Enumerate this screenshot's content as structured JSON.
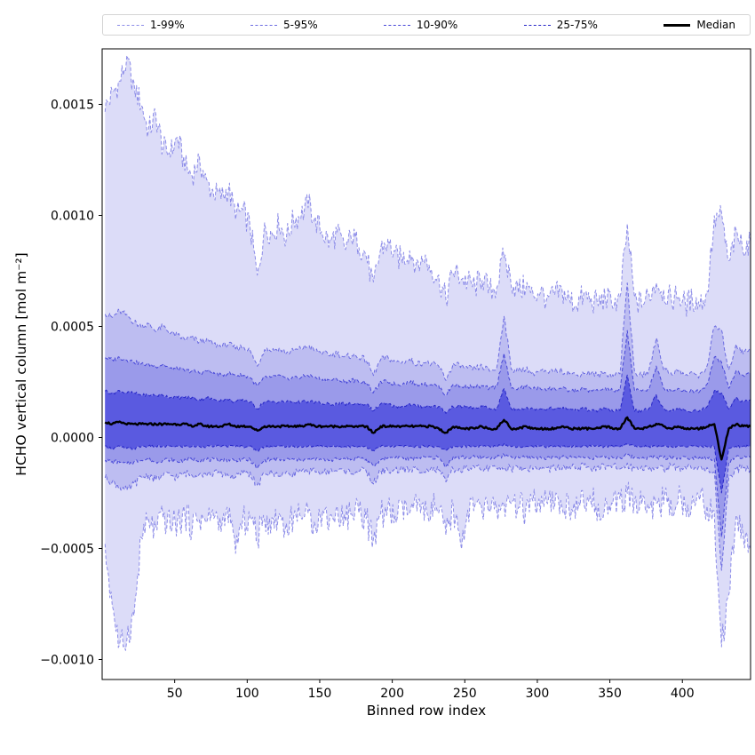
{
  "legend": {
    "entries": [
      {
        "label": "1-99%",
        "color": "#8c8ce8",
        "style": "dashed"
      },
      {
        "label": "5-95%",
        "color": "#6b6be1",
        "style": "dashed"
      },
      {
        "label": "10-90%",
        "color": "#4747d8",
        "style": "dashed"
      },
      {
        "label": "25-75%",
        "color": "#2626c8",
        "style": "dashed"
      },
      {
        "label": "Median",
        "color": "#000000",
        "style": "solid"
      }
    ]
  },
  "chart_data": {
    "type": "area",
    "title": "",
    "xlabel": "Binned row index",
    "ylabel": "HCHO vertical column [mol m⁻²]",
    "grid": false,
    "legend_position": "top",
    "xlim": [
      0,
      447
    ],
    "ylim": [
      -0.00109,
      0.00175
    ],
    "xticks": [
      {
        "v": 50,
        "label": "50"
      },
      {
        "v": 100,
        "label": "100"
      },
      {
        "v": 150,
        "label": "150"
      },
      {
        "v": 200,
        "label": "200"
      },
      {
        "v": 250,
        "label": "250"
      },
      {
        "v": 300,
        "label": "300"
      },
      {
        "v": 350,
        "label": "350"
      },
      {
        "v": 400,
        "label": "400"
      }
    ],
    "yticks": [
      {
        "v": -0.001,
        "label": "−0.0010"
      },
      {
        "v": -0.0005,
        "label": "−0.0005"
      },
      {
        "v": 0.0,
        "label": "0.0000"
      },
      {
        "v": 0.0005,
        "label": "0.0005"
      },
      {
        "v": 0.001,
        "label": "0.0010"
      },
      {
        "v": 0.0015,
        "label": "0.0015"
      }
    ],
    "x": [
      2,
      7,
      12,
      17,
      22,
      27,
      32,
      37,
      42,
      47,
      52,
      57,
      62,
      67,
      72,
      77,
      82,
      87,
      92,
      97,
      102,
      107,
      112,
      117,
      122,
      127,
      132,
      137,
      142,
      147,
      152,
      157,
      162,
      167,
      172,
      177,
      182,
      187,
      192,
      197,
      202,
      207,
      212,
      217,
      222,
      227,
      232,
      237,
      242,
      247,
      252,
      257,
      262,
      267,
      272,
      277,
      282,
      287,
      292,
      297,
      302,
      307,
      312,
      317,
      322,
      327,
      332,
      337,
      342,
      347,
      352,
      357,
      362,
      367,
      372,
      377,
      382,
      387,
      392,
      397,
      402,
      407,
      412,
      417,
      422,
      427,
      432,
      437,
      442,
      447
    ],
    "series": [
      {
        "name": "p99",
        "percentile": 99,
        "noise": 6e-05,
        "values": [
          0.00148,
          0.00155,
          0.0016,
          0.0017,
          0.00158,
          0.0015,
          0.00138,
          0.00145,
          0.0013,
          0.00128,
          0.00135,
          0.00122,
          0.00118,
          0.00125,
          0.00115,
          0.0011,
          0.00108,
          0.00112,
          0.001,
          0.00102,
          0.00095,
          0.00072,
          0.00095,
          0.00092,
          0.00096,
          0.0009,
          0.00098,
          0.001,
          0.00105,
          0.00098,
          0.00092,
          0.00088,
          0.00092,
          0.00085,
          0.0009,
          0.00087,
          0.00082,
          0.00068,
          0.00085,
          0.00088,
          0.00082,
          0.0008,
          0.00084,
          0.00078,
          0.0008,
          0.00076,
          0.00072,
          0.00062,
          0.00075,
          0.00072,
          0.0007,
          0.00068,
          0.00072,
          0.00066,
          0.00068,
          0.00082,
          0.0007,
          0.00066,
          0.00068,
          0.00064,
          0.00066,
          0.00062,
          0.00064,
          0.00066,
          0.00062,
          0.0006,
          0.00064,
          0.00062,
          0.0006,
          0.00063,
          0.0006,
          0.00062,
          0.00095,
          0.00062,
          0.0006,
          0.00064,
          0.0007,
          0.00066,
          0.00062,
          0.00064,
          0.0006,
          0.00062,
          0.0006,
          0.00065,
          0.00098,
          0.001,
          0.00078,
          0.00092,
          0.00085,
          0.00088
        ]
      },
      {
        "name": "p95",
        "percentile": 95,
        "noise": 1.5e-05,
        "values": [
          0.00056,
          0.00054,
          0.00057,
          0.00055,
          0.00052,
          0.0005,
          0.00051,
          0.00048,
          0.0005,
          0.00047,
          0.00046,
          0.00044,
          0.00045,
          0.00043,
          0.00044,
          0.00042,
          0.00041,
          0.00042,
          0.0004,
          0.00041,
          0.00039,
          0.00032,
          0.0004,
          0.00039,
          0.0004,
          0.00038,
          0.00039,
          0.0004,
          0.00041,
          0.00039,
          0.00038,
          0.00037,
          0.00038,
          0.00036,
          0.00037,
          0.00036,
          0.00035,
          0.00028,
          0.00035,
          0.00036,
          0.00034,
          0.00034,
          0.00035,
          0.00033,
          0.00034,
          0.00033,
          0.00032,
          0.00026,
          0.00033,
          0.00032,
          0.00031,
          0.00031,
          0.00032,
          0.0003,
          0.00031,
          0.00055,
          0.00031,
          0.0003,
          0.00031,
          0.00029,
          0.0003,
          0.00029,
          0.0003,
          0.0003,
          0.00029,
          0.00028,
          0.00029,
          0.00029,
          0.00028,
          0.00029,
          0.00028,
          0.00029,
          0.0007,
          0.00029,
          0.00028,
          0.0003,
          0.00045,
          0.00031,
          0.00029,
          0.0003,
          0.00028,
          0.00029,
          0.00028,
          0.00032,
          0.0005,
          0.00048,
          0.0003,
          0.00042,
          0.00038,
          0.0004
        ]
      },
      {
        "name": "p90",
        "percentile": 90,
        "noise": 1e-05,
        "values": [
          0.00036,
          0.00035,
          0.00036,
          0.00035,
          0.00034,
          0.00033,
          0.00033,
          0.00032,
          0.00033,
          0.00031,
          0.00031,
          0.0003,
          0.0003,
          0.00029,
          0.0003,
          0.00029,
          0.00028,
          0.00029,
          0.00028,
          0.00028,
          0.00027,
          0.00023,
          0.00027,
          0.00027,
          0.00028,
          0.00026,
          0.00027,
          0.00027,
          0.00028,
          0.00027,
          0.00026,
          0.00026,
          0.00026,
          0.00025,
          0.00026,
          0.00025,
          0.00025,
          0.0002,
          0.00025,
          0.00025,
          0.00024,
          0.00024,
          0.00025,
          0.00024,
          0.00024,
          0.00024,
          0.00023,
          0.00019,
          0.00024,
          0.00023,
          0.00023,
          0.00023,
          0.00023,
          0.00022,
          0.00023,
          0.00038,
          0.00022,
          0.00022,
          0.00023,
          0.00022,
          0.00022,
          0.00022,
          0.00022,
          0.00022,
          0.00021,
          0.00021,
          0.00022,
          0.00021,
          0.00021,
          0.00022,
          0.00021,
          0.00021,
          0.00048,
          0.00021,
          0.00021,
          0.00022,
          0.00032,
          0.00022,
          0.00021,
          0.00022,
          0.00021,
          0.00021,
          0.00021,
          0.00024,
          0.00036,
          0.00034,
          0.00022,
          0.0003,
          0.00028,
          0.00029
        ]
      },
      {
        "name": "p75",
        "percentile": 75,
        "noise": 8e-06,
        "values": [
          0.00021,
          0.0002,
          0.00021,
          0.0002,
          0.0002,
          0.00019,
          0.00019,
          0.00019,
          0.00019,
          0.00018,
          0.00018,
          0.00018,
          0.00018,
          0.00017,
          0.00018,
          0.00017,
          0.00017,
          0.00017,
          0.00016,
          0.00017,
          0.00016,
          0.00013,
          0.00016,
          0.00016,
          0.00016,
          0.00016,
          0.00016,
          0.00016,
          0.00016,
          0.00016,
          0.00015,
          0.00015,
          0.00015,
          0.00015,
          0.00015,
          0.00015,
          0.00015,
          0.00012,
          0.00015,
          0.00015,
          0.00014,
          0.00014,
          0.00015,
          0.00014,
          0.00014,
          0.00014,
          0.00014,
          0.00011,
          0.00014,
          0.00014,
          0.00014,
          0.00013,
          0.00014,
          0.00013,
          0.00013,
          0.00022,
          0.00013,
          0.00013,
          0.00013,
          0.00013,
          0.00013,
          0.00013,
          0.00013,
          0.00013,
          0.00013,
          0.00012,
          0.00013,
          0.00012,
          0.00012,
          0.00013,
          0.00012,
          0.00012,
          0.00028,
          0.00012,
          0.00012,
          0.00013,
          0.00019,
          0.00013,
          0.00012,
          0.00013,
          0.00012,
          0.00012,
          0.00012,
          0.00014,
          0.00021,
          0.0002,
          0.00013,
          0.00018,
          0.00016,
          0.00017
        ]
      },
      {
        "name": "median",
        "percentile": 50,
        "noise": 5e-06,
        "values": [
          7e-05,
          6e-05,
          7e-05,
          6e-05,
          6e-05,
          6e-05,
          6e-05,
          6e-05,
          6e-05,
          6e-05,
          6e-05,
          6e-05,
          5e-05,
          6e-05,
          5e-05,
          5e-05,
          5e-05,
          6e-05,
          5e-05,
          5e-05,
          5e-05,
          3e-05,
          5e-05,
          5e-05,
          5e-05,
          5e-05,
          5e-05,
          5e-05,
          6e-05,
          5e-05,
          5e-05,
          5e-05,
          5e-05,
          5e-05,
          5e-05,
          5e-05,
          5e-05,
          2e-05,
          5e-05,
          5e-05,
          5e-05,
          5e-05,
          5e-05,
          5e-05,
          5e-05,
          5e-05,
          4e-05,
          2e-05,
          5e-05,
          4e-05,
          4e-05,
          4e-05,
          5e-05,
          4e-05,
          4e-05,
          8e-05,
          4e-05,
          4e-05,
          5e-05,
          4e-05,
          4e-05,
          4e-05,
          4e-05,
          5e-05,
          4e-05,
          4e-05,
          4e-05,
          4e-05,
          4e-05,
          5e-05,
          4e-05,
          4e-05,
          9e-05,
          4e-05,
          4e-05,
          5e-05,
          6e-05,
          5e-05,
          4e-05,
          5e-05,
          4e-05,
          4e-05,
          4e-05,
          5e-05,
          6e-05,
          -0.0001,
          4e-05,
          6e-05,
          5e-05,
          5e-05
        ]
      },
      {
        "name": "p25",
        "percentile": 25,
        "noise": 6e-06,
        "values": [
          -4e-05,
          -5e-05,
          -4e-05,
          -5e-05,
          -5e-05,
          -4e-05,
          -4e-05,
          -4e-05,
          -4e-05,
          -4e-05,
          -4e-05,
          -4e-05,
          -4e-05,
          -4e-05,
          -4e-05,
          -4e-05,
          -4e-05,
          -4e-05,
          -4e-05,
          -4e-05,
          -4e-05,
          -6e-05,
          -4e-05,
          -4e-05,
          -4e-05,
          -4e-05,
          -4e-05,
          -4e-05,
          -4e-05,
          -4e-05,
          -4e-05,
          -4e-05,
          -4e-05,
          -4e-05,
          -4e-05,
          -4e-05,
          -4e-05,
          -6e-05,
          -4e-05,
          -4e-05,
          -4e-05,
          -4e-05,
          -4e-05,
          -4e-05,
          -4e-05,
          -4e-05,
          -4e-05,
          -6e-05,
          -4e-05,
          -4e-05,
          -4e-05,
          -4e-05,
          -4e-05,
          -4e-05,
          -4e-05,
          -3e-05,
          -4e-05,
          -4e-05,
          -4e-05,
          -4e-05,
          -4e-05,
          -4e-05,
          -4e-05,
          -4e-05,
          -4e-05,
          -4e-05,
          -4e-05,
          -4e-05,
          -4e-05,
          -4e-05,
          -4e-05,
          -4e-05,
          -3e-05,
          -4e-05,
          -4e-05,
          -4e-05,
          -4e-05,
          -4e-05,
          -4e-05,
          -4e-05,
          -4e-05,
          -4e-05,
          -4e-05,
          -4e-05,
          -4e-05,
          -0.00025,
          -5e-05,
          -4e-05,
          -4e-05,
          -4e-05
        ]
      },
      {
        "name": "p10",
        "percentile": 10,
        "noise": 1e-05,
        "values": [
          -0.0001,
          -0.00011,
          -0.00011,
          -0.00012,
          -0.00011,
          -0.0001,
          -0.0001,
          -0.00011,
          -0.0001,
          -0.0001,
          -0.00011,
          -0.0001,
          -0.0001,
          -0.0001,
          -0.0001,
          -0.0001,
          -0.0001,
          -0.0001,
          -0.0001,
          -0.0001,
          -0.0001,
          -0.00014,
          -0.0001,
          -0.0001,
          -0.0001,
          -0.0001,
          -0.0001,
          -0.0001,
          -0.0001,
          -0.0001,
          -0.0001,
          -0.0001,
          -0.0001,
          -9e-05,
          -0.0001,
          -9e-05,
          -0.0001,
          -0.00013,
          -0.0001,
          -9e-05,
          -9e-05,
          -9e-05,
          -0.0001,
          -9e-05,
          -9e-05,
          -9e-05,
          -9e-05,
          -0.00013,
          -9e-05,
          -9e-05,
          -9e-05,
          -9e-05,
          -9e-05,
          -9e-05,
          -9e-05,
          -8e-05,
          -9e-05,
          -9e-05,
          -9e-05,
          -9e-05,
          -9e-05,
          -9e-05,
          -9e-05,
          -9e-05,
          -9e-05,
          -9e-05,
          -9e-05,
          -9e-05,
          -9e-05,
          -9e-05,
          -9e-05,
          -9e-05,
          -8e-05,
          -9e-05,
          -9e-05,
          -9e-05,
          -9e-05,
          -9e-05,
          -9e-05,
          -9e-05,
          -9e-05,
          -9e-05,
          -9e-05,
          -9e-05,
          -0.0001,
          -0.00045,
          -0.00011,
          -9e-05,
          -9e-05,
          -9e-05
        ]
      },
      {
        "name": "p05",
        "percentile": 5,
        "noise": 1.8e-05,
        "values": [
          -0.00018,
          -0.0002,
          -0.00022,
          -0.00024,
          -0.00021,
          -0.00018,
          -0.00017,
          -0.00019,
          -0.00017,
          -0.00017,
          -0.00018,
          -0.00016,
          -0.00017,
          -0.00016,
          -0.00017,
          -0.00016,
          -0.00016,
          -0.00017,
          -0.00018,
          -0.00016,
          -0.00016,
          -0.00022,
          -0.00016,
          -0.00016,
          -0.00017,
          -0.00016,
          -0.00016,
          -0.00015,
          -0.00016,
          -0.00015,
          -0.00016,
          -0.00015,
          -0.00015,
          -0.00015,
          -0.00016,
          -0.00015,
          -0.00015,
          -0.00021,
          -0.00015,
          -0.00015,
          -0.00015,
          -0.00014,
          -0.00015,
          -0.00014,
          -0.00015,
          -0.00014,
          -0.00015,
          -0.0002,
          -0.00014,
          -0.00015,
          -0.00014,
          -0.00014,
          -0.00014,
          -0.00014,
          -0.00014,
          -0.00013,
          -0.00014,
          -0.00014,
          -0.00014,
          -0.00014,
          -0.00014,
          -0.00014,
          -0.00014,
          -0.00014,
          -0.00013,
          -0.00014,
          -0.00013,
          -0.00014,
          -0.00013,
          -0.00014,
          -0.00013,
          -0.00014,
          -0.00012,
          -0.00014,
          -0.00013,
          -0.00014,
          -0.00014,
          -0.00014,
          -0.00013,
          -0.00014,
          -0.00013,
          -0.00014,
          -0.00013,
          -0.00014,
          -0.00016,
          -0.0006,
          -0.00018,
          -0.00014,
          -0.00014,
          -0.00014
        ]
      },
      {
        "name": "p01",
        "percentile": 1,
        "noise": 7e-05,
        "values": [
          -0.0005,
          -0.00075,
          -0.00095,
          -0.0009,
          -0.0008,
          -0.00045,
          -0.00038,
          -0.00042,
          -0.00036,
          -0.0004,
          -0.00038,
          -0.00035,
          -0.0004,
          -0.00036,
          -0.00038,
          -0.00035,
          -0.0004,
          -0.00036,
          -0.0005,
          -0.00038,
          -0.00036,
          -0.00045,
          -0.00036,
          -0.00038,
          -0.00035,
          -0.0004,
          -0.00036,
          -0.00034,
          -0.00036,
          -0.00038,
          -0.00034,
          -0.00036,
          -0.00033,
          -0.00036,
          -0.00034,
          -0.00032,
          -0.00036,
          -0.00048,
          -0.00034,
          -0.00033,
          -0.00036,
          -0.00032,
          -0.00034,
          -0.00032,
          -0.00035,
          -0.00031,
          -0.00034,
          -0.00044,
          -0.00032,
          -0.00048,
          -0.00033,
          -0.00031,
          -0.00034,
          -0.00031,
          -0.00033,
          -0.0003,
          -0.00032,
          -0.00031,
          -0.00033,
          -0.0003,
          -0.00032,
          -0.0003,
          -0.00031,
          -0.0003,
          -0.00032,
          -0.00029,
          -0.00031,
          -0.00029,
          -0.00031,
          -0.00029,
          -0.0003,
          -0.0003,
          -0.00026,
          -0.0003,
          -0.00029,
          -0.00031,
          -0.0003,
          -0.00029,
          -0.0003,
          -0.00028,
          -0.0003,
          -0.00028,
          -0.00029,
          -0.0003,
          -0.00035,
          -0.00095,
          -0.0007,
          -0.00035,
          -0.00045,
          -0.0005
        ]
      }
    ],
    "bands": [
      {
        "label": "1-99%",
        "lower": "p01",
        "upper": "p99",
        "fill": "#dcdcf8",
        "edge": "#8c8ce8"
      },
      {
        "label": "5-95%",
        "lower": "p05",
        "upper": "p95",
        "fill": "#bdbdf1",
        "edge": "#6b6be1"
      },
      {
        "label": "10-90%",
        "lower": "p10",
        "upper": "p90",
        "fill": "#9a9aea",
        "edge": "#4747d8"
      },
      {
        "label": "25-75%",
        "lower": "p25",
        "upper": "p75",
        "fill": "#5a5ae0",
        "edge": "#2626c8"
      }
    ],
    "median_line": {
      "series": "median",
      "label": "Median",
      "color": "#000000",
      "width": 2.4
    }
  }
}
